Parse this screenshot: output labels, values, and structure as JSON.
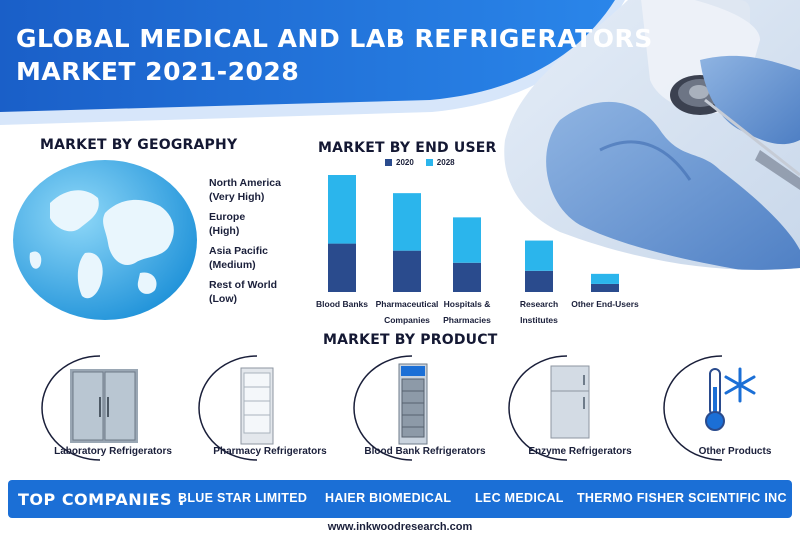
{
  "header": {
    "title_line1": "GLOBAL MEDICAL AND LAB REFRIGERATORS",
    "title_line2": "MARKET 2021-2028"
  },
  "geography": {
    "title": "MARKET BY GEOGRAPHY",
    "regions": [
      {
        "name": "North America",
        "rank": "(Very High)"
      },
      {
        "name": "Europe",
        "rank": "(High)"
      },
      {
        "name": "Asia Pacific",
        "rank": "(Medium)"
      },
      {
        "name": "Rest of World",
        "rank": "(Low)"
      }
    ]
  },
  "chart_data": {
    "type": "bar",
    "title": "MARKET BY END USER",
    "stacked": true,
    "categories": [
      [
        "Blood Banks"
      ],
      [
        "Pharmaceutical",
        "Companies"
      ],
      [
        "Hospitals &",
        "Pharmacies"
      ],
      [
        "Research",
        "Institutes"
      ],
      [
        "Other End-Users"
      ]
    ],
    "series": [
      {
        "name": "2020",
        "color": "#2a4b8d",
        "values": [
          48,
          41,
          29,
          21,
          8
        ]
      },
      {
        "name": "2028",
        "color": "#2bb5ec",
        "values": [
          68,
          57,
          45,
          30,
          10
        ]
      }
    ],
    "ylim": [
      0,
      116
    ],
    "legend": "top"
  },
  "products": {
    "title": "MARKET BY PRODUCT",
    "items": [
      {
        "label": "Laboratory Refrigerators",
        "icon": "laboratory-refrigerator-icon"
      },
      {
        "label": "Pharmacy Refrigerators",
        "icon": "pharmacy-refrigerator-icon"
      },
      {
        "label": "Blood Bank Refrigerators",
        "icon": "blood-bank-refrigerator-icon"
      },
      {
        "label": "Enzyme Refrigerators",
        "icon": "enzyme-refrigerator-icon"
      },
      {
        "label": "Other Products",
        "icon": "thermometer-snowflake-icon"
      }
    ]
  },
  "companies": {
    "label": "TOP COMPANIES :",
    "items": [
      "BLUE STAR LIMITED",
      "HAIER BIOMEDICAL",
      "LEC MEDICAL",
      "THERMO FISHER SCIENTIFIC INC"
    ]
  },
  "footer": {
    "url": "www.inkwoodresearch.com"
  },
  "colors": {
    "primary_blue": "#1b6fd6",
    "dark_navy": "#2a4b8d",
    "light_blue": "#2bb5ec"
  }
}
